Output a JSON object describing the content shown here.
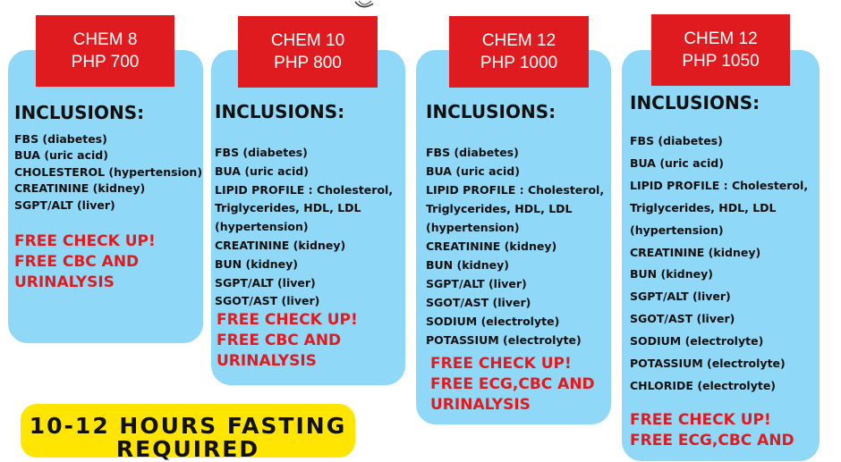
{
  "packages": [
    {
      "name": "CHEM 8",
      "price": "PHP 700",
      "heading": "INCLUSIONS:",
      "items": [
        "FBS (diabetes)",
        "BUA (uric acid)",
        "CHOLESTEROL (hypertension)",
        "CREATININE (kidney)",
        "SGPT/ALT (liver)"
      ],
      "freebies": [
        "FREE CHECK UP!",
        "FREE CBC AND",
        "URINALYSIS"
      ]
    },
    {
      "name": "CHEM 10",
      "price": "PHP 800",
      "heading": "INCLUSIONS:",
      "items": [
        "FBS (diabetes)",
        "BUA (uric acid)",
        "LIPID PROFILE : Cholesterol,",
        "Triglycerides, HDL, LDL",
        "(hypertension)",
        "CREATININE (kidney)",
        "BUN (kidney)",
        "SGPT/ALT (liver)",
        "SGOT/AST (liver)"
      ],
      "freebies": [
        "FREE CHECK UP!",
        "FREE CBC AND",
        "URINALYSIS"
      ]
    },
    {
      "name": "CHEM 12",
      "price": "PHP 1000",
      "heading": "INCLUSIONS:",
      "items": [
        "FBS (diabetes)",
        "BUA (uric acid)",
        "LIPID PROFILE : Cholesterol,",
        "Triglycerides, HDL, LDL",
        "(hypertension)",
        "CREATININE (kidney)",
        "BUN (kidney)",
        "SGPT/ALT (liver)",
        "SGOT/AST (liver)",
        "SODIUM (electrolyte)",
        "POTASSIUM (electrolyte)"
      ],
      "freebies": [
        "FREE CHECK UP!",
        "FREE ECG,CBC AND",
        "URINALYSIS"
      ]
    },
    {
      "name": "CHEM 12",
      "price": "PHP 1050",
      "heading": "INCLUSIONS:",
      "items": [
        "FBS (diabetes)",
        "BUA (uric acid)",
        "LIPID PROFILE : Cholesterol,",
        "Triglycerides, HDL, LDL",
        "(hypertension)",
        "CREATININE (kidney)",
        "BUN (kidney)",
        "SGPT/ALT (liver)",
        "SGOT/AST (liver)",
        "SODIUM (electrolyte)",
        "POTASSIUM (electrolyte)",
        "CHLORIDE (electrolyte)"
      ],
      "freebies": [
        "FREE CHECK UP!",
        "FREE ECG,CBC AND"
      ]
    }
  ],
  "fasting_banner": {
    "line1": "10-12 HOURS FASTING",
    "line2": "REQUIRED"
  },
  "colors": {
    "card": "#8fd8f7",
    "tag": "#e01b1f",
    "free_text": "#e01b1f",
    "banner": "#ffe500"
  }
}
